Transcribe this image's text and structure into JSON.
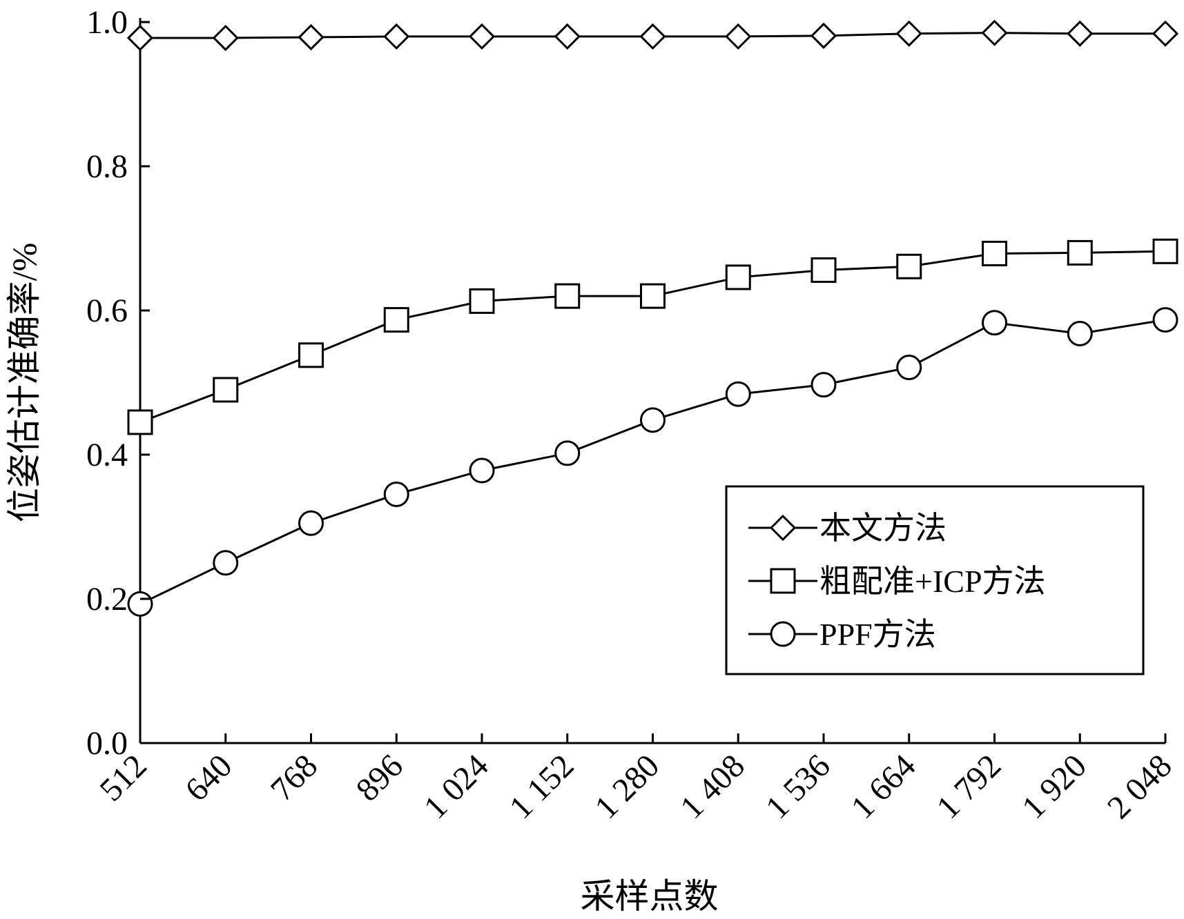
{
  "chart_data": {
    "type": "line",
    "title": "",
    "xlabel": "采样点数",
    "ylabel": "位姿估计准确率/%",
    "categories": [
      "512",
      "640",
      "768",
      "896",
      "1 024",
      "1 152",
      "1 280",
      "1 408",
      "1 536",
      "1 664",
      "1 792",
      "1 920",
      "2 048"
    ],
    "ylim": [
      0,
      1.0
    ],
    "yticks": [
      "0.0",
      "0.2",
      "0.4",
      "0.6",
      "0.8",
      "1.0"
    ],
    "grid": false,
    "legend_position": "lower-right",
    "series": [
      {
        "name": "本文方法",
        "marker": "diamond",
        "values": [
          0.978,
          0.978,
          0.979,
          0.98,
          0.98,
          0.98,
          0.98,
          0.98,
          0.981,
          0.984,
          0.985,
          0.984,
          0.984
        ]
      },
      {
        "name": "粗配准+ICP方法",
        "marker": "square",
        "values": [
          0.445,
          0.49,
          0.538,
          0.587,
          0.613,
          0.62,
          0.62,
          0.646,
          0.656,
          0.661,
          0.679,
          0.68,
          0.682
        ]
      },
      {
        "name": "PPF方法",
        "marker": "circle",
        "values": [
          0.193,
          0.25,
          0.305,
          0.345,
          0.378,
          0.402,
          0.448,
          0.484,
          0.497,
          0.521,
          0.583,
          0.568,
          0.587
        ]
      }
    ]
  }
}
